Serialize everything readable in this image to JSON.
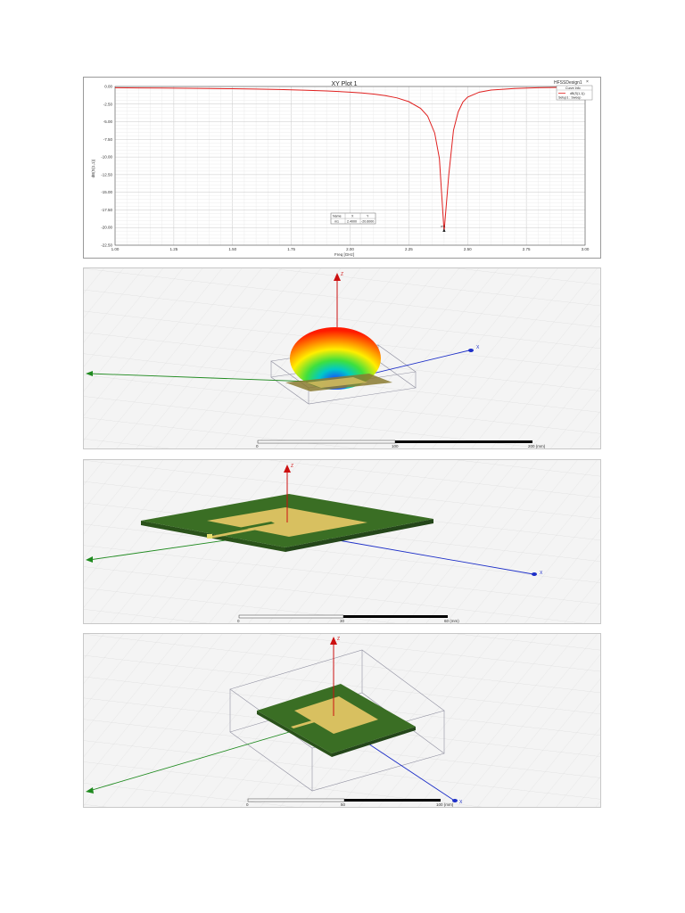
{
  "chart_data": {
    "type": "line",
    "title": "XY Plot 1",
    "xlabel": "Freq [GHz]",
    "ylabel": "dB(S(1,1))",
    "xlim": [
      1.0,
      3.0
    ],
    "ylim": [
      -22.5,
      0.0
    ],
    "x_ticks": [
      "1.00",
      "1.25",
      "1.50",
      "1.75",
      "2.00",
      "2.25",
      "2.50",
      "2.75",
      "3.00"
    ],
    "y_ticks": [
      "0.00",
      "-2.50",
      "-5.00",
      "-7.50",
      "-10.00",
      "-12.50",
      "-15.00",
      "-17.50",
      "-20.00",
      "-22.50"
    ],
    "grid": true,
    "series": [
      {
        "name": "dB(S(1,1))",
        "color": "#e0201f",
        "x": [
          1.0,
          1.1,
          1.2,
          1.3,
          1.4,
          1.5,
          1.6,
          1.7,
          1.8,
          1.9,
          2.0,
          2.05,
          2.1,
          2.15,
          2.2,
          2.25,
          2.3,
          2.33,
          2.36,
          2.38,
          2.4,
          2.42,
          2.44,
          2.46,
          2.48,
          2.5,
          2.55,
          2.6,
          2.7,
          2.8,
          2.9,
          3.0
        ],
        "y": [
          -0.18,
          -0.2,
          -0.22,
          -0.25,
          -0.28,
          -0.32,
          -0.37,
          -0.43,
          -0.52,
          -0.63,
          -0.8,
          -0.92,
          -1.08,
          -1.3,
          -1.62,
          -2.15,
          -3.1,
          -4.2,
          -6.6,
          -10.2,
          -20.6,
          -12.5,
          -6.2,
          -3.6,
          -2.2,
          -1.5,
          -0.8,
          -0.5,
          -0.28,
          -0.18,
          -0.12,
          -0.08
        ]
      }
    ],
    "marker": {
      "name": "m1",
      "x": 2.4,
      "y": -20.6
    },
    "marker_table": {
      "headers": [
        "Name",
        "X",
        "Y"
      ],
      "row": [
        "m1",
        "2.4000",
        "-20.6000"
      ]
    },
    "legend": {
      "design": "HFSSDesign1",
      "header": "Curve Info",
      "entry": "dB(S(1,1))",
      "setup": "Setup1 : Sweep"
    }
  },
  "views": {
    "radiation": {
      "axes": {
        "x": "X",
        "y": "Y",
        "z": "Z"
      },
      "scale": {
        "start": "0",
        "mid": "100",
        "end": "200 (mm)"
      }
    },
    "patch_top": {
      "axes": {
        "x": "X",
        "y": "Y",
        "z": "Z"
      },
      "scale": {
        "start": "0",
        "mid": "30",
        "end": "60 (mm)"
      }
    },
    "patch_box": {
      "axes": {
        "x": "X",
        "y": "Y",
        "z": "Z"
      },
      "scale": {
        "start": "0",
        "mid": "50",
        "end": "100 (mm)"
      }
    }
  },
  "colors": {
    "substrate": "#3a6e24",
    "patch": "#d8c060",
    "axis_x": "#1d2fc8",
    "axis_y": "#1f8a1f",
    "axis_z": "#cc1010",
    "curve": "#e0201f"
  }
}
